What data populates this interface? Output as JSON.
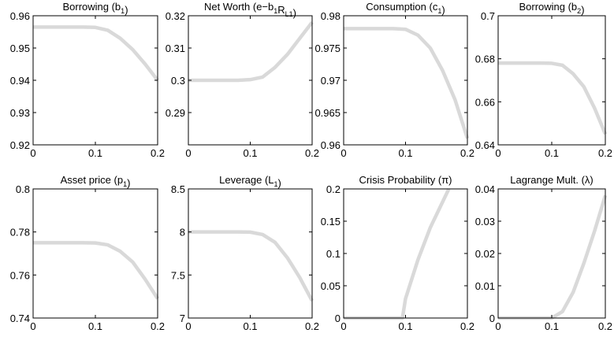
{
  "chart_data": [
    {
      "type": "line",
      "title": [
        "Borrowing (b",
        {
          "sub": "1"
        },
        ")"
      ],
      "x": [
        0,
        0.02,
        0.04,
        0.06,
        0.08,
        0.1,
        0.12,
        0.14,
        0.16,
        0.18,
        0.2
      ],
      "values": [
        0.9565,
        0.9565,
        0.9565,
        0.9565,
        0.9565,
        0.9564,
        0.9555,
        0.953,
        0.9495,
        0.945,
        0.94
      ],
      "color": "#d9d9d9",
      "xlim": [
        0,
        0.2
      ],
      "ylim": [
        0.92,
        0.96
      ],
      "xticks": [
        0,
        0.1,
        0.2
      ],
      "yticks": [
        0.92,
        0.93,
        0.94,
        0.95,
        0.96
      ]
    },
    {
      "type": "line",
      "title": [
        "Net Worth (e−b",
        {
          "sub": "1"
        },
        "R",
        {
          "sub": "L1"
        },
        ")"
      ],
      "x": [
        0,
        0.02,
        0.04,
        0.06,
        0.08,
        0.1,
        0.12,
        0.14,
        0.16,
        0.18,
        0.2
      ],
      "values": [
        0.3,
        0.3,
        0.3,
        0.3,
        0.3,
        0.3002,
        0.301,
        0.304,
        0.308,
        0.313,
        0.318
      ],
      "color": "#d9d9d9",
      "xlim": [
        0,
        0.2
      ],
      "ylim": [
        0.28,
        0.32
      ],
      "xticks": [
        0,
        0.1,
        0.2
      ],
      "yticks": [
        0.29,
        0.3,
        0.31,
        0.32
      ]
    },
    {
      "type": "line",
      "title": [
        "Consumption (c",
        {
          "sub": "1"
        },
        ")"
      ],
      "x": [
        0,
        0.02,
        0.04,
        0.06,
        0.08,
        0.1,
        0.12,
        0.14,
        0.16,
        0.18,
        0.2
      ],
      "values": [
        0.978,
        0.978,
        0.978,
        0.978,
        0.978,
        0.9779,
        0.977,
        0.975,
        0.9715,
        0.967,
        0.961
      ],
      "color": "#d9d9d9",
      "xlim": [
        0,
        0.2
      ],
      "ylim": [
        0.96,
        0.98
      ],
      "xticks": [
        0,
        0.1,
        0.2
      ],
      "yticks": [
        0.96,
        0.965,
        0.97,
        0.975,
        0.98
      ]
    },
    {
      "type": "line",
      "title": [
        "Borrowing (b",
        {
          "sub": "2"
        },
        ")"
      ],
      "x": [
        0,
        0.02,
        0.04,
        0.06,
        0.08,
        0.1,
        0.12,
        0.14,
        0.16,
        0.18,
        0.2
      ],
      "values": [
        0.678,
        0.678,
        0.678,
        0.678,
        0.678,
        0.6779,
        0.677,
        0.673,
        0.667,
        0.657,
        0.645
      ],
      "color": "#d9d9d9",
      "xlim": [
        0,
        0.2
      ],
      "ylim": [
        0.64,
        0.7
      ],
      "xticks": [
        0,
        0.1,
        0.2
      ],
      "yticks": [
        0.64,
        0.66,
        0.68,
        0.7
      ]
    },
    {
      "type": "line",
      "title": [
        "Asset price (p",
        {
          "sub": "1"
        },
        ")"
      ],
      "x": [
        0,
        0.02,
        0.04,
        0.06,
        0.08,
        0.1,
        0.12,
        0.14,
        0.16,
        0.18,
        0.2
      ],
      "values": [
        0.775,
        0.775,
        0.775,
        0.775,
        0.775,
        0.7749,
        0.774,
        0.771,
        0.766,
        0.758,
        0.749
      ],
      "color": "#d9d9d9",
      "xlim": [
        0,
        0.2
      ],
      "ylim": [
        0.74,
        0.8
      ],
      "xticks": [
        0,
        0.1,
        0.2
      ],
      "yticks": [
        0.74,
        0.76,
        0.78,
        0.8
      ]
    },
    {
      "type": "line",
      "title": [
        "Leverage (L",
        {
          "sub": "1"
        },
        ")"
      ],
      "x": [
        0,
        0.02,
        0.04,
        0.06,
        0.08,
        0.1,
        0.12,
        0.14,
        0.16,
        0.18,
        0.2
      ],
      "values": [
        8,
        8,
        8,
        8,
        8,
        7.998,
        7.97,
        7.88,
        7.7,
        7.47,
        7.2
      ],
      "color": "#d9d9d9",
      "xlim": [
        0,
        0.2
      ],
      "ylim": [
        7,
        8.5
      ],
      "xticks": [
        0,
        0.1,
        0.2
      ],
      "yticks": [
        7,
        7.5,
        8,
        8.5
      ]
    },
    {
      "type": "line",
      "title": [
        "Crisis Probability (π)"
      ],
      "x": [
        0,
        0.02,
        0.04,
        0.06,
        0.08,
        0.095,
        0.1,
        0.12,
        0.14,
        0.16,
        0.17
      ],
      "values": [
        0,
        0,
        0,
        0,
        0,
        0,
        0.03,
        0.09,
        0.14,
        0.18,
        0.2
      ],
      "color": "#d9d9d9",
      "xlim": [
        0,
        0.2
      ],
      "ylim": [
        0,
        0.2
      ],
      "xticks": [
        0,
        0.1,
        0.2
      ],
      "yticks": [
        0,
        0.05,
        0.1,
        0.15,
        0.2
      ]
    },
    {
      "type": "line",
      "title": [
        "Lagrange Mult. (λ)"
      ],
      "x": [
        0,
        0.02,
        0.04,
        0.06,
        0.08,
        0.1,
        0.12,
        0.14,
        0.16,
        0.18,
        0.2
      ],
      "values": [
        0,
        0,
        0,
        0,
        0,
        0,
        0.002,
        0.008,
        0.017,
        0.027,
        0.038
      ],
      "color": "#d9d9d9",
      "xlim": [
        0,
        0.2
      ],
      "ylim": [
        0,
        0.04
      ],
      "xticks": [
        0,
        0.1,
        0.2
      ],
      "yticks": [
        0,
        0.01,
        0.02,
        0.03,
        0.04
      ]
    }
  ]
}
